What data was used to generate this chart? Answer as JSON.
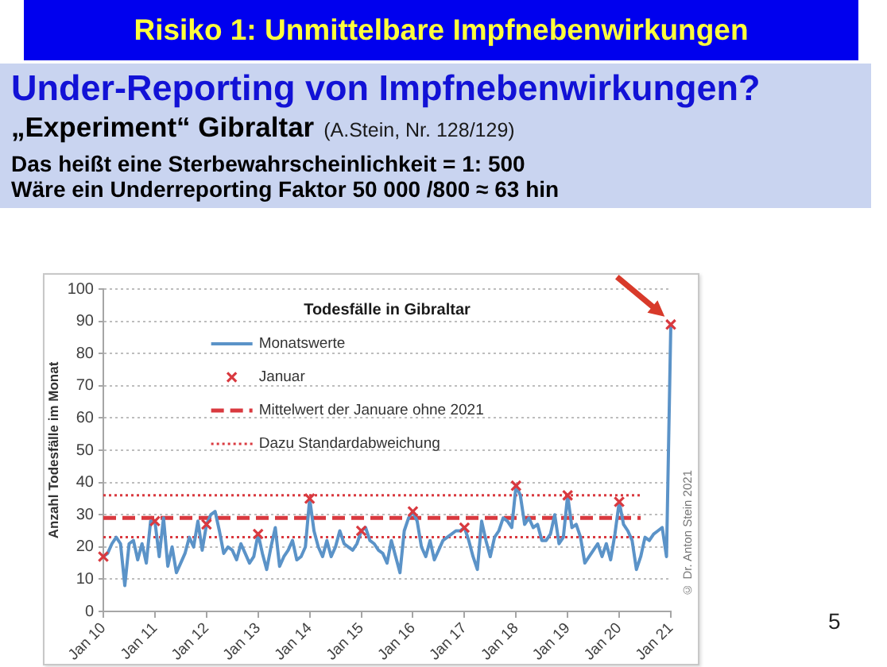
{
  "chart_data": {
    "type": "line",
    "title": "Todesfälle in Gibraltar",
    "ylabel": "Anzahl Todesfälle im Monat",
    "annotations": [
      "Risiko 1: Unmittelbare Impfnebenwirkungen",
      "Under-Reporting von Impfnebenwirkungen?",
      "„Experiment“ Gibraltar",
      "(A.Stein, Nr. 128/129)",
      "Das heißt eine Sterbewahrscheinlichkeit = 1: 500",
      "Wäre ein Underreporting Faktor 50 000 /800 ≈ 63 hin",
      "© Dr. Anton Stein 2021",
      "5"
    ],
    "x": [
      "2010-01",
      "2010-02",
      "2010-03",
      "2010-04",
      "2010-05",
      "2010-06",
      "2010-07",
      "2010-08",
      "2010-09",
      "2010-10",
      "2010-11",
      "2010-12",
      "2011-01",
      "2011-02",
      "2011-03",
      "2011-04",
      "2011-05",
      "2011-06",
      "2011-07",
      "2011-08",
      "2011-09",
      "2011-10",
      "2011-11",
      "2011-12",
      "2012-01",
      "2012-02",
      "2012-03",
      "2012-04",
      "2012-05",
      "2012-06",
      "2012-07",
      "2012-08",
      "2012-09",
      "2012-10",
      "2012-11",
      "2012-12",
      "2013-01",
      "2013-02",
      "2013-03",
      "2013-04",
      "2013-05",
      "2013-06",
      "2013-07",
      "2013-08",
      "2013-09",
      "2013-10",
      "2013-11",
      "2013-12",
      "2014-01",
      "2014-02",
      "2014-03",
      "2014-04",
      "2014-05",
      "2014-06",
      "2014-07",
      "2014-08",
      "2014-09",
      "2014-10",
      "2014-11",
      "2014-12",
      "2015-01",
      "2015-02",
      "2015-03",
      "2015-04",
      "2015-05",
      "2015-06",
      "2015-07",
      "2015-08",
      "2015-09",
      "2015-10",
      "2015-11",
      "2015-12",
      "2016-01",
      "2016-02",
      "2016-03",
      "2016-04",
      "2016-05",
      "2016-06",
      "2016-07",
      "2016-08",
      "2016-09",
      "2016-10",
      "2016-11",
      "2016-12",
      "2017-01",
      "2017-02",
      "2017-03",
      "2017-04",
      "2017-05",
      "2017-06",
      "2017-07",
      "2017-08",
      "2017-09",
      "2017-10",
      "2017-11",
      "2017-12",
      "2018-01",
      "2018-02",
      "2018-03",
      "2018-04",
      "2018-05",
      "2018-06",
      "2018-07",
      "2018-08",
      "2018-09",
      "2018-10",
      "2018-11",
      "2018-12",
      "2019-01",
      "2019-02",
      "2019-03",
      "2019-04",
      "2019-05",
      "2019-06",
      "2019-07",
      "2019-08",
      "2019-09",
      "2019-10",
      "2019-11",
      "2019-12",
      "2020-01",
      "2020-02",
      "2020-03",
      "2020-04",
      "2020-05",
      "2020-06",
      "2020-07",
      "2020-08",
      "2020-09",
      "2020-10",
      "2020-11",
      "2020-12",
      "2021-01"
    ],
    "series": [
      {
        "name": "Monatswerte",
        "color": "#5b93c8",
        "values": [
          17,
          18,
          21,
          23,
          21,
          8,
          21,
          22,
          16,
          21,
          15,
          28,
          28,
          17,
          29,
          14,
          20,
          12,
          15,
          18,
          23,
          20,
          28,
          19,
          27,
          30,
          31,
          25,
          18,
          20,
          19,
          16,
          21,
          18,
          15,
          17,
          24,
          18,
          13,
          20,
          26,
          14,
          17,
          19,
          22,
          16,
          17,
          20,
          35,
          25,
          20,
          17,
          22,
          17,
          20,
          25,
          21,
          20,
          19,
          21,
          25,
          26,
          22,
          21,
          19,
          18,
          15,
          22,
          17,
          12,
          25,
          29,
          31,
          28,
          20,
          17,
          22,
          16,
          19,
          22,
          23,
          24,
          25,
          25,
          26,
          22,
          17,
          13,
          28,
          22,
          17,
          23,
          25,
          29,
          28,
          26,
          39,
          36,
          27,
          29,
          26,
          27,
          22,
          22,
          24,
          30,
          21,
          23,
          36,
          26,
          27,
          23,
          15,
          17,
          19,
          21,
          17,
          21,
          16,
          24,
          34,
          27,
          25,
          22,
          13,
          17,
          23,
          22,
          24,
          25,
          26,
          17,
          89
        ]
      },
      {
        "name": "Januar",
        "type": "scatter",
        "marker": "cross",
        "color": "#d9393f",
        "x": [
          "2010-01",
          "2011-01",
          "2012-01",
          "2013-01",
          "2014-01",
          "2015-01",
          "2016-01",
          "2017-01",
          "2018-01",
          "2019-01",
          "2020-01",
          "2021-01"
        ],
        "values": [
          17,
          28,
          27,
          24,
          35,
          25,
          31,
          26,
          39,
          36,
          34,
          89
        ]
      },
      {
        "name": "Mittelwert der Januare ohne 2021",
        "line_style": "dashed",
        "color": "#d9393f",
        "x": [
          "2010-01",
          "2020-06"
        ],
        "values": [
          29,
          29
        ]
      },
      {
        "name": "Dazu Standardabweichung",
        "line_style": "dotted",
        "color": "#d9393f",
        "x": [
          "2010-01",
          "2020-06"
        ],
        "values": [
          36,
          36
        ]
      },
      {
        "line_style": "dotted",
        "color": "#d9393f",
        "x": [
          "2010-01",
          "2020-06"
        ],
        "values": [
          23,
          23
        ]
      }
    ],
    "xlim": [
      "2010-01",
      "2021-01"
    ],
    "xticks": [
      {
        "value": "2010-01",
        "label": "Jan 10"
      },
      {
        "value": "2011-01",
        "label": "Jan 11"
      },
      {
        "value": "2012-01",
        "label": "Jan 12"
      },
      {
        "value": "2013-01",
        "label": "Jan 13"
      },
      {
        "value": "2014-01",
        "label": "Jan 14"
      },
      {
        "value": "2015-01",
        "label": "Jan 15"
      },
      {
        "value": "2016-01",
        "label": "Jan 16"
      },
      {
        "value": "2017-01",
        "label": "Jan 17"
      },
      {
        "value": "2018-01",
        "label": "Jan 18"
      },
      {
        "value": "2019-01",
        "label": "Jan 19"
      },
      {
        "value": "2020-01",
        "label": "Jan 20"
      },
      {
        "value": "2021-01",
        "label": "Jan 21"
      }
    ],
    "ylim": [
      0,
      100
    ],
    "yticks": [
      0,
      10,
      20,
      30,
      40,
      50,
      60,
      70,
      80,
      90,
      100
    ],
    "grid": "y",
    "legend": "top left"
  }
}
